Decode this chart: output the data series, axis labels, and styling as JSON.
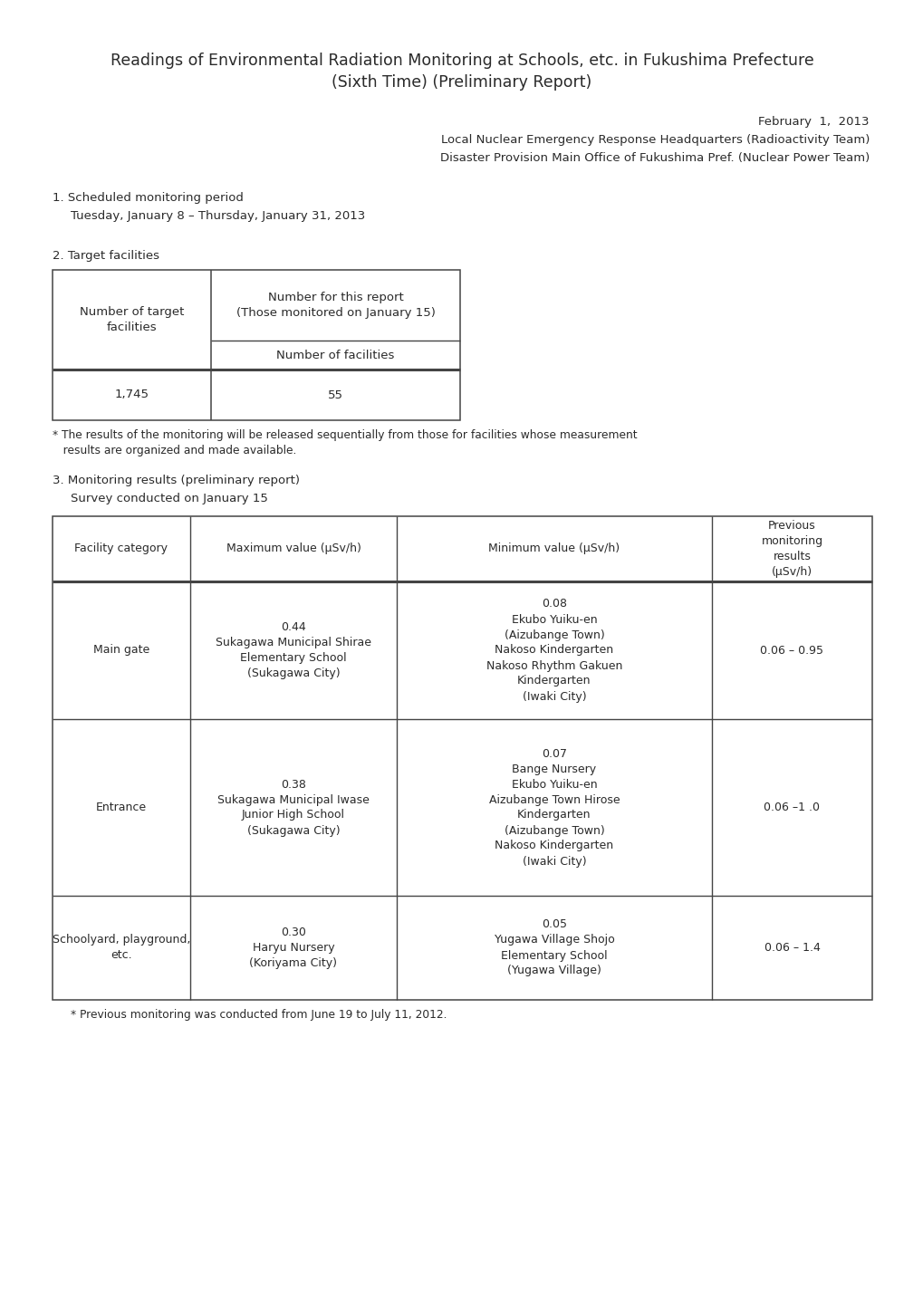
{
  "title_line1": "Readings of Environmental Radiation Monitoring at Schools, etc. in Fukushima Prefecture",
  "title_line2": "(Sixth Time) (Preliminary Report)",
  "date": "February  1,  2013",
  "org1": "Local Nuclear Emergency Response Headquarters (Radioactivity Team)",
  "org2": "Disaster Provision Main Office of Fukushima Pref. (Nuclear Power Team)",
  "section1_header": "1. Scheduled monitoring period",
  "section1_body": "Tuesday, January 8 – Thursday, January 31, 2013",
  "section2_header": "2. Target facilities",
  "table1_col1_header": "Number of target\nfacilities",
  "table1_col2_header": "Number for this report\n(Those monitored on January 15)",
  "table1_col2_subheader": "Number of facilities",
  "table1_row1_col1": "1,745",
  "table1_row1_col2": "55",
  "table1_footnote_line1": "* The results of the monitoring will be released sequentially from those for facilities whose measurement",
  "table1_footnote_line2": "   results are organized and made available.",
  "section3_header": "3. Monitoring results (preliminary report)",
  "section3_sub": "Survey conducted on January 15",
  "table2_headers": [
    "Facility category",
    "Maximum value (μSv/h)",
    "Minimum value (μSv/h)",
    "Previous\nmonitoring\nresults\n(μSv/h)"
  ],
  "table2_row1_col1": "Main gate",
  "table2_row1_col2": "0.44\nSukagawa Municipal Shirae\nElementary School\n(Sukagawa City)",
  "table2_row1_col3": "0.08\nEkubo Yuiku-en\n(Aizubange Town)\nNakoso Kindergarten\nNakoso Rhythm Gakuen\nKindergarten\n(Iwaki City)",
  "table2_row1_col4": "0.06 – 0.95",
  "table2_row2_col1": "Entrance",
  "table2_row2_col2": "0.38\nSukagawa Municipal Iwase\nJunior High School\n(Sukagawa City)",
  "table2_row2_col3": "0.07\nBange Nursery\nEkubo Yuiku-en\nAizubange Town Hirose\nKindergarten\n(Aizubange Town)\nNakoso Kindergarten\n(Iwaki City)",
  "table2_row2_col4": "0.06 –1 .0",
  "table2_row3_col1": "Schoolyard, playground,\netc.",
  "table2_row3_col2": "0.30\nHaryu Nursery\n(Koriyama City)",
  "table2_row3_col3": "0.05\nYugawa Village Shojo\nElementary School\n(Yugawa Village)",
  "table2_row3_col4": "0.06 – 1.4",
  "table2_footnote": "* Previous monitoring was conducted from June 19 to July 11, 2012.",
  "bg_color": "#ffffff",
  "text_color": "#2a2a2a",
  "line_color": "#444444",
  "font_size_title": 12.5,
  "font_size_body": 9.5,
  "font_size_table": 9.0
}
